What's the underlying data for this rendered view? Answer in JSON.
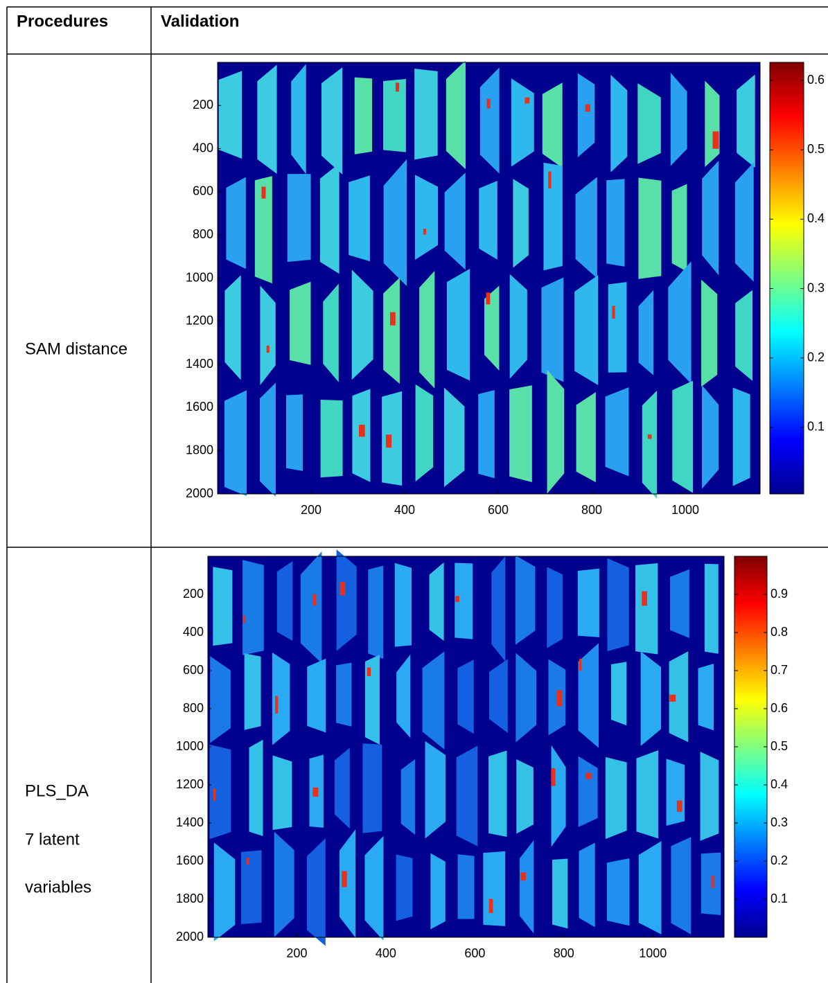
{
  "table": {
    "header": [
      "Procedures",
      "Validation"
    ],
    "rows": [
      {
        "procedure": [
          "SAM distance"
        ],
        "figure": {
          "type": "heatmap",
          "xlim": [
            0,
            1160
          ],
          "ylim": [
            0,
            2000
          ],
          "y_reversed": true,
          "xticks": [
            200,
            400,
            600,
            800,
            1000
          ],
          "yticks": [
            200,
            400,
            600,
            800,
            1000,
            1200,
            1400,
            1600,
            1800,
            2000
          ],
          "colorbar": {
            "lim": [
              0.004,
              0.626
            ],
            "ticks": [
              0.1,
              0.2,
              0.3,
              0.4,
              0.5,
              0.6
            ]
          }
        }
      },
      {
        "procedure": [
          "PLS_DA",
          "7 latent",
          "variables"
        ],
        "figure": {
          "type": "heatmap",
          "xlim": [
            0,
            1160
          ],
          "ylim": [
            0,
            2000
          ],
          "y_reversed": true,
          "xticks": [
            200,
            400,
            600,
            800,
            1000
          ],
          "yticks": [
            200,
            400,
            600,
            800,
            1000,
            1200,
            1400,
            1600,
            1800,
            2000
          ],
          "colorbar": {
            "lim": [
              0,
              1
            ],
            "ticks": [
              0.1,
              0.2,
              0.3,
              0.4,
              0.5,
              0.6,
              0.7,
              0.8,
              0.9
            ]
          }
        }
      }
    ]
  }
}
